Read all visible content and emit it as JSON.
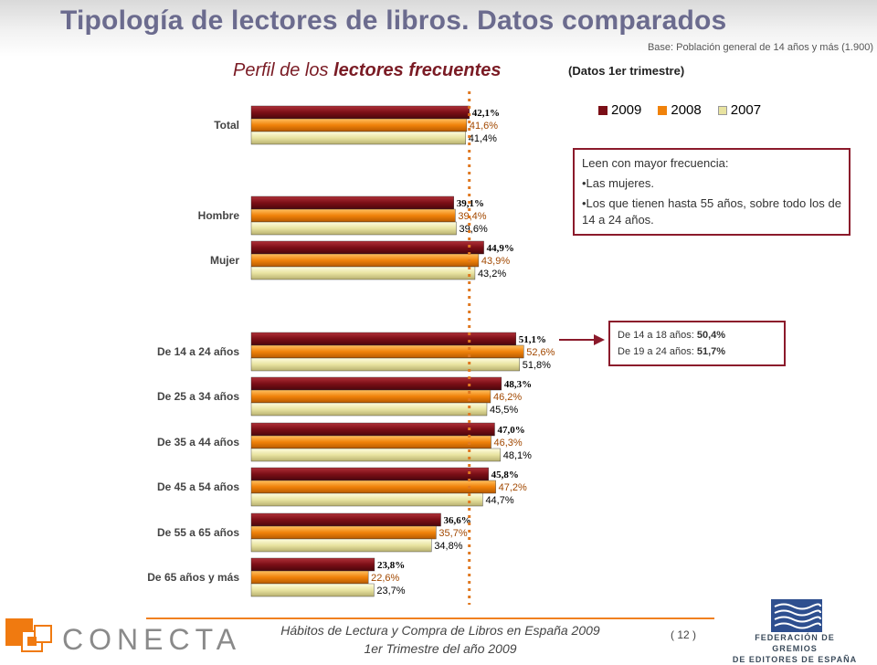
{
  "header": {
    "title": "Tipología de lectores de libros. Datos comparados",
    "base": "Base: Población general de 14 años y más (1.900)"
  },
  "subtitle": {
    "prefix": "Perfil de los ",
    "emphasis": "lectores frecuentes",
    "note": "(Datos 1er trimestre)"
  },
  "legend": [
    "2009",
    "2008",
    "2007"
  ],
  "colors": {
    "2009": "#7b0f17",
    "2008": "#f0820a",
    "2007": "#e8e3a0",
    "reference_line": "#e07820",
    "accent": "#8b1a2b"
  },
  "chart_data": {
    "type": "bar",
    "orientation": "horizontal",
    "categories": [
      "Total",
      "Hombre",
      "Mujer",
      "De 14 a 24 años",
      "De 25 a 34 años",
      "De 35 a 44 años",
      "De 45 a 54 años",
      "De 55 a 65 años",
      "De 65 años y más"
    ],
    "series": [
      {
        "name": "2009",
        "values": [
          42.1,
          39.1,
          44.9,
          51.1,
          48.3,
          47.0,
          45.8,
          36.6,
          23.8
        ],
        "labels": [
          "42,1%",
          "39,1%",
          "44,9%",
          "51,1%",
          "48,3%",
          "47,0%",
          "45,8%",
          "36,6%",
          "23,8%"
        ]
      },
      {
        "name": "2008",
        "values": [
          41.6,
          39.4,
          43.9,
          52.6,
          46.2,
          46.3,
          47.2,
          35.7,
          22.6
        ],
        "labels": [
          "41,6%",
          "39,4%",
          "43,9%",
          "52,6%",
          "46,2%",
          "46,3%",
          "47,2%",
          "35,7%",
          "22,6%"
        ]
      },
      {
        "name": "2007",
        "values": [
          41.4,
          39.6,
          43.2,
          51.8,
          45.5,
          48.1,
          44.7,
          34.8,
          23.7
        ],
        "labels": [
          "41,4%",
          "39,6%",
          "43,2%",
          "51,8%",
          "45,5%",
          "48,1%",
          "44,7%",
          "34,8%",
          "23,7%"
        ]
      }
    ],
    "reference_value": 42.1,
    "xlim": [
      0,
      100
    ],
    "grid": false,
    "legend_position": "top-right"
  },
  "box_frecuencia": {
    "intro": "Leen con mayor frecuencia:",
    "item1": "•Las mujeres.",
    "item2": "•Los que tienen hasta 55 años, sobre todo los de 14 a 24 años."
  },
  "box_edades": {
    "line1_label": "De 14 a 18 años: ",
    "line1_value": "50,4%",
    "line2_label": "De 19 a 24 años: ",
    "line2_value": "51,7%"
  },
  "footer": {
    "brand": "CONECTA",
    "line1": "Hábitos de Lectura y Compra de Libros en España 2009",
    "line2": "1er Trimestre del año 2009",
    "page": "( 12 )",
    "federation_line1": "FEDERACIÓN DE GREMIOS",
    "federation_line2": "DE EDITORES DE ESPAÑA"
  }
}
